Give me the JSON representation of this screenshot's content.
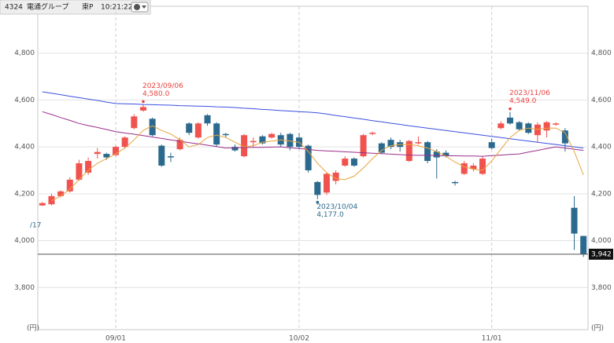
{
  "header": {
    "code": "4324",
    "name": "電通グループ",
    "market": "東P",
    "time": "10:21:22"
  },
  "chart_data": {
    "type": "candlestick",
    "categories": [
      null,
      null,
      null,
      null,
      null,
      null,
      null,
      null,
      "09/01",
      null,
      null,
      null,
      null,
      null,
      null,
      null,
      null,
      null,
      null,
      null,
      null,
      null,
      null,
      null,
      null,
      null,
      null,
      null,
      "10/02",
      null,
      null,
      null,
      null,
      null,
      null,
      null,
      null,
      null,
      null,
      null,
      null,
      null,
      null,
      null,
      null,
      null,
      null,
      null,
      null,
      "11/01",
      null,
      null,
      null,
      null,
      null,
      null,
      null,
      null,
      null,
      null
    ],
    "open": [
      4150,
      4155,
      4190,
      4210,
      4260,
      4290,
      4370,
      4370,
      4365,
      4400,
      4480,
      4555,
      4520,
      4405,
      4360,
      4390,
      4500,
      4440,
      4535,
      4500,
      4455,
      4400,
      4360,
      4420,
      4445,
      4440,
      4450,
      4455,
      4440,
      4405,
      4250,
      4205,
      4255,
      4320,
      4350,
      4360,
      4455,
      4415,
      4430,
      4420,
      4340,
      4415,
      4420,
      4380,
      4375,
      4250,
      4285,
      4305,
      4285,
      4420,
      4480,
      4525,
      4505,
      4500,
      4450,
      4470,
      4495,
      4470,
      4140,
      4020
    ],
    "high": [
      4165,
      4200,
      4215,
      4270,
      4345,
      4355,
      4395,
      4375,
      4405,
      4445,
      4540,
      4580,
      4525,
      4410,
      4375,
      4440,
      4505,
      4505,
      4540,
      4505,
      4460,
      4410,
      4455,
      4440,
      4450,
      4460,
      4460,
      4460,
      4460,
      4410,
      4255,
      4290,
      4300,
      4360,
      4355,
      4455,
      4465,
      4420,
      4440,
      4430,
      4430,
      4445,
      4425,
      4390,
      4385,
      4255,
      4340,
      4330,
      4360,
      4435,
      4510,
      4549,
      4510,
      4505,
      4505,
      4510,
      4505,
      4480,
      4190,
      4020
    ],
    "low": [
      4148,
      4150,
      4185,
      4205,
      4255,
      4280,
      4350,
      4345,
      4360,
      4395,
      4475,
      4550,
      4445,
      4315,
      4335,
      4385,
      4450,
      4435,
      4490,
      4400,
      4440,
      4380,
      4355,
      4400,
      4410,
      4435,
      4400,
      4385,
      4390,
      4290,
      4177,
      4195,
      4240,
      4315,
      4315,
      4355,
      4450,
      4370,
      4390,
      4380,
      4335,
      4410,
      4330,
      4265,
      4355,
      4235,
      4280,
      4295,
      4280,
      4390,
      4475,
      4495,
      4470,
      4455,
      4420,
      4440,
      4490,
      4380,
      3960,
      3930
    ],
    "close": [
      4160,
      4190,
      4210,
      4260,
      4330,
      4340,
      4378,
      4355,
      4400,
      4440,
      4530,
      4570,
      4450,
      4320,
      4355,
      4430,
      4460,
      4500,
      4500,
      4410,
      4450,
      4385,
      4450,
      4425,
      4415,
      4455,
      4410,
      4400,
      4400,
      4300,
      4195,
      4285,
      4290,
      4350,
      4320,
      4450,
      4460,
      4375,
      4400,
      4400,
      4425,
      4420,
      4340,
      4355,
      4360,
      4245,
      4330,
      4320,
      4350,
      4395,
      4500,
      4500,
      4475,
      4460,
      4495,
      4505,
      4500,
      4415,
      4030,
      3942
    ],
    "up_color": "#f0534f",
    "down_color": "#2b6a8e",
    "lines": [
      {
        "color": "#3b4fe0",
        "values": [
          4635,
          4629,
          4623,
          4616,
          4610,
          4604,
          4598,
          4591,
          4585,
          4584,
          4583,
          4581,
          4580,
          4579,
          4578,
          4576,
          4575,
          4574,
          4573,
          4571,
          4570,
          4568,
          4565,
          4563,
          4560,
          4558,
          4555,
          4553,
          4550,
          4548,
          4545,
          4540,
          4534,
          4529,
          4523,
          4518,
          4512,
          4507,
          4501,
          4496,
          4490,
          4485,
          4480,
          4475,
          4470,
          4465,
          4460,
          4455,
          4450,
          4445,
          4440,
          4435,
          4430,
          4425,
          4420,
          4415,
          4410,
          4405,
          4400,
          4395
        ]
      },
      {
        "color": "#9a2d8c",
        "values": [
          4550,
          4538,
          4525,
          4513,
          4500,
          4491,
          4483,
          4474,
          4465,
          4459,
          4454,
          4448,
          4442,
          4436,
          4430,
          4424,
          4418,
          4413,
          4407,
          4401,
          4395,
          4396,
          4397,
          4398,
          4398,
          4399,
          4400,
          4396,
          4393,
          4389,
          4385,
          4383,
          4381,
          4379,
          4377,
          4375,
          4373,
          4371,
          4369,
          4367,
          4365,
          4364,
          4364,
          4363,
          4362,
          4362,
          4361,
          4361,
          4360,
          4363,
          4365,
          4368,
          4370,
          4378,
          4385,
          4393,
          4400,
          4395,
          4390,
          4385
        ]
      },
      {
        "color": "#e8a43c",
        "values": [
          null,
          4170,
          4190,
          4220,
          4260,
          4300,
          4330,
          4350,
          4370,
          4395,
          4430,
          4470,
          4490,
          4470,
          4455,
          4430,
          4400,
          4410,
          4440,
          4450,
          4440,
          4420,
          4400,
          4405,
          4420,
          4425,
          4430,
          4425,
          4420,
          4380,
          4330,
          4290,
          4265,
          4260,
          4275,
          4310,
          4350,
          4385,
          4405,
          4410,
          4410,
          4405,
          4395,
          4380,
          4360,
          4335,
          4315,
          4305,
          4300,
          4340,
          4390,
          4440,
          4470,
          4480,
          4475,
          4480,
          4480,
          4460,
          4380,
          4280
        ]
      }
    ],
    "ylim": [
      3620,
      5000
    ],
    "yticks": [
      {
        "value": 3800,
        "label": "3,800"
      },
      {
        "value": 4000,
        "label": "4,000"
      },
      {
        "value": 4200,
        "label": "4,200"
      },
      {
        "value": 4400,
        "label": "4,400"
      },
      {
        "value": 4600,
        "label": "4,600"
      },
      {
        "value": 4800,
        "label": "4,800"
      }
    ],
    "y_unit": "(円)",
    "last_price": {
      "value": 3942,
      "label": "3,942"
    },
    "annotations": [
      {
        "text": "2023/09/06",
        "value": {
          "value": 4580,
          "label": "4,580.0"
        }
      },
      {
        "text": "2023/10/04",
        "value": {
          "value": 4177,
          "label": "4,177.0"
        }
      },
      {
        "text": "2023/11/06",
        "value": {
          "value": 4549,
          "label": "4,549.0"
        }
      }
    ],
    "partial_label": "/17",
    "grid": true
  }
}
